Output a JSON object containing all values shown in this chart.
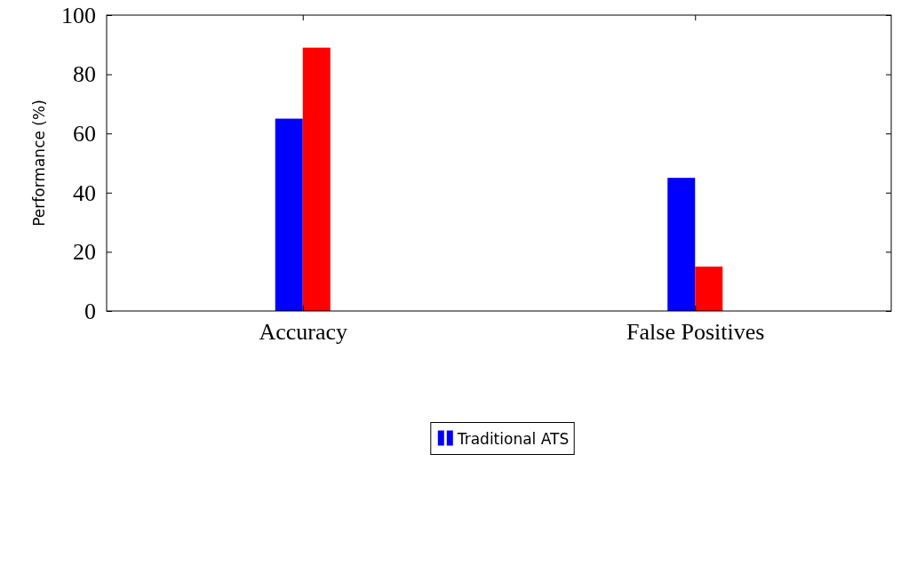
{
  "chart_data": {
    "type": "bar",
    "categories": [
      "Accuracy",
      "False Positives"
    ],
    "ylabel": "Performance (%)",
    "series": [
      {
        "name": "Traditional ATS",
        "color": "#0000ff",
        "values": [
          65,
          45
        ]
      },
      {
        "color": "#ff0000",
        "values": [
          89,
          15
        ]
      }
    ],
    "ylim": [
      0,
      100
    ],
    "yticks": [
      0,
      20,
      40,
      60,
      80,
      100
    ],
    "grid": false,
    "legend": "bottom"
  }
}
